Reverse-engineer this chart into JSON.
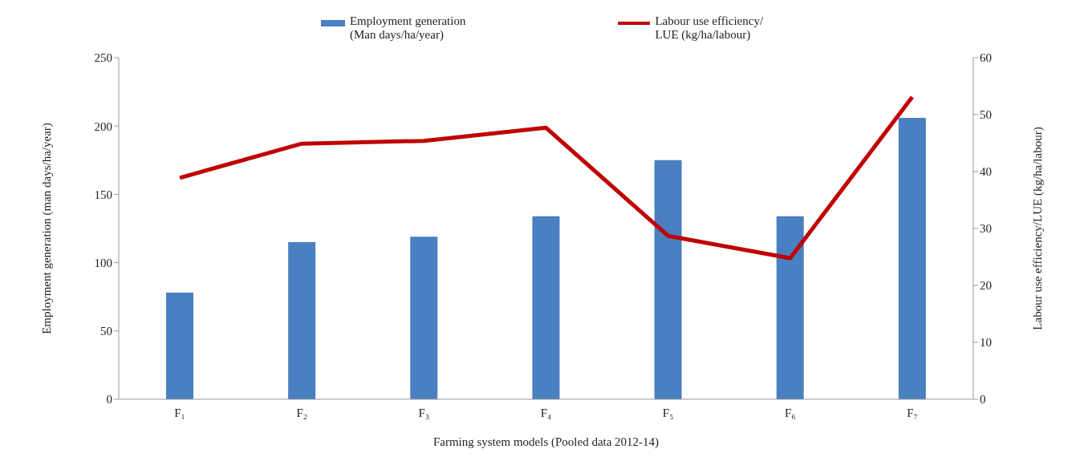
{
  "chart_data": {
    "type": "bar",
    "xlabel": "Farming system models (Pooled data 2012-14)",
    "ylabel": "Employment generation (man days/ha/year)",
    "y2label": "Labour use efficiency/LUE (kg/ha/labour)",
    "categories": [
      "F₁",
      "F₂",
      "F₃",
      "F₄",
      "F₅",
      "F₆",
      "F₇"
    ],
    "series": [
      {
        "name": "Employment generation\n(Man days/ha/year)",
        "color": "#4a7fc1",
        "values": [
          78,
          115,
          119,
          134,
          175,
          134,
          206
        ]
      },
      {
        "name": "Labour use efficiency/\nLUE (kg/ha/labour)",
        "type": "line",
        "axis": "y2",
        "color": "#c00000",
        "values": [
          38.9,
          44.9,
          45.4,
          47.7,
          28.7,
          24.8,
          53.1
        ]
      }
    ],
    "ylim": [
      0,
      250
    ],
    "yticks": [
      0,
      50,
      100,
      150,
      200,
      250
    ],
    "y2lim": [
      0,
      60
    ],
    "y2ticks": [
      0,
      10,
      20,
      30,
      40,
      50,
      60
    ],
    "grid": false,
    "legend": "top",
    "marker": "none"
  }
}
